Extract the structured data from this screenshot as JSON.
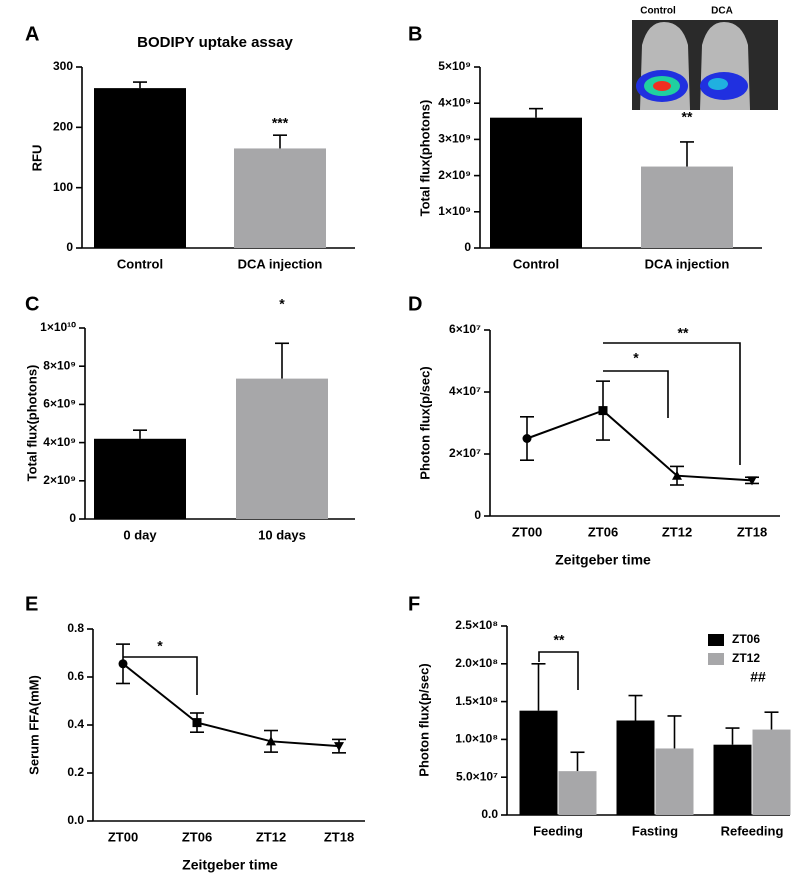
{
  "chart_data": [
    {
      "type": "bar",
      "panel_label": "A",
      "title": "BODIPY uptake assay",
      "y_label": "RFU",
      "categories": [
        "Control",
        "DCA injection"
      ],
      "values": [
        265,
        165
      ],
      "errors": [
        10,
        22
      ],
      "colors": [
        "#000000",
        "#a7a7a9"
      ],
      "ylim": [
        0,
        300
      ],
      "yticks": [
        0,
        100,
        200,
        300
      ],
      "annotations": [
        "***"
      ]
    },
    {
      "type": "bar",
      "panel_label": "B",
      "y_label": "Total flux(photons)",
      "categories": [
        "Control",
        "DCA injection"
      ],
      "values": [
        3600000000,
        2250000000
      ],
      "errors": [
        250000000,
        680000000
      ],
      "colors": [
        "#000000",
        "#a7a7a9"
      ],
      "ylim": [
        0,
        5000000000
      ],
      "yticks": [
        0,
        {
          "value": 1000000000,
          "label": "1×10⁹"
        },
        {
          "value": 2000000000,
          "label": "2×10⁹"
        },
        {
          "value": 3000000000,
          "label": "3×10⁹"
        },
        {
          "value": 4000000000,
          "label": "4×10⁹"
        },
        {
          "value": 5000000000,
          "label": "5×10⁹"
        }
      ],
      "annotations": [
        "**"
      ],
      "inset_labels": [
        "Control",
        "DCA"
      ]
    },
    {
      "type": "bar",
      "panel_label": "C",
      "y_label": "Total flux(photons)",
      "categories": [
        "0 day",
        "10 days"
      ],
      "values": [
        4200000000,
        7350000000
      ],
      "errors": [
        450000000,
        1850000000
      ],
      "colors": [
        "#000000",
        "#a7a7a9"
      ],
      "ylim": [
        0,
        10000000000
      ],
      "yticks": [
        0,
        {
          "value": 2000000000,
          "label": "2×10⁹"
        },
        {
          "value": 4000000000,
          "label": "4×10⁹"
        },
        {
          "value": 6000000000,
          "label": "6×10⁹"
        },
        {
          "value": 8000000000,
          "label": "8×10⁹"
        },
        {
          "value": 10000000000,
          "label": "1×10¹⁰"
        }
      ],
      "annotations": [
        "*"
      ]
    },
    {
      "type": "line",
      "panel_label": "D",
      "y_label": "Photon flux(p/sec)",
      "x_label": "Zeitgeber time",
      "categories": [
        "ZT00",
        "ZT06",
        "ZT12",
        "ZT18"
      ],
      "values": [
        25000000,
        34000000,
        13000000,
        11500000
      ],
      "errors": [
        7000000,
        9500000,
        3000000,
        1000000
      ],
      "color": "#000000",
      "ylim": [
        0,
        60000000
      ],
      "yticks": [
        0,
        {
          "value": 20000000,
          "label": "2×10⁷"
        },
        {
          "value": 40000000,
          "label": "4×10⁷"
        },
        {
          "value": 60000000,
          "label": "6×10⁷"
        }
      ],
      "annotations": [
        "*",
        "**"
      ]
    },
    {
      "type": "line",
      "panel_label": "E",
      "y_label": "Serum FFA(mM)",
      "x_label": "Zeitgeber time",
      "categories": [
        "ZT00",
        "ZT06",
        "ZT12",
        "ZT18"
      ],
      "values": [
        0.655,
        0.41,
        0.332,
        0.312
      ],
      "errors": [
        0.082,
        0.04,
        0.045,
        0.028
      ],
      "color": "#000000",
      "ylim": [
        0,
        0.8
      ],
      "yticks": [
        {
          "value": 0,
          "label": "0.0"
        },
        0.2,
        0.4,
        0.6,
        0.8
      ],
      "annotations": [
        "*"
      ]
    },
    {
      "type": "grouped_bar",
      "panel_label": "F",
      "y_label": "Photon flux(p/sec)",
      "categories": [
        "Feeding",
        "Fasting",
        "Refeeding"
      ],
      "series": [
        {
          "name": "ZT06",
          "color": "#000000",
          "values": [
            138000000,
            125000000,
            93000000
          ],
          "errors": [
            62000000,
            33000000,
            22000000
          ]
        },
        {
          "name": "ZT12",
          "color": "#a7a7a9",
          "values": [
            58000000,
            88000000,
            113000000
          ],
          "errors": [
            25000000,
            43000000,
            23000000
          ]
        }
      ],
      "ylim": [
        0,
        250000000
      ],
      "yticks": [
        {
          "value": 0,
          "label": "0.0"
        },
        {
          "value": 50000000,
          "label": "5.0×10⁷"
        },
        {
          "value": 100000000,
          "label": "1.0×10⁸"
        },
        {
          "value": 150000000,
          "label": "1.5×10⁸"
        },
        {
          "value": 200000000,
          "label": "2.0×10⁸"
        },
        {
          "value": 250000000,
          "label": "2.5×10⁸"
        }
      ],
      "annotations": [
        "**",
        "##"
      ],
      "legend": "upper right"
    }
  ]
}
